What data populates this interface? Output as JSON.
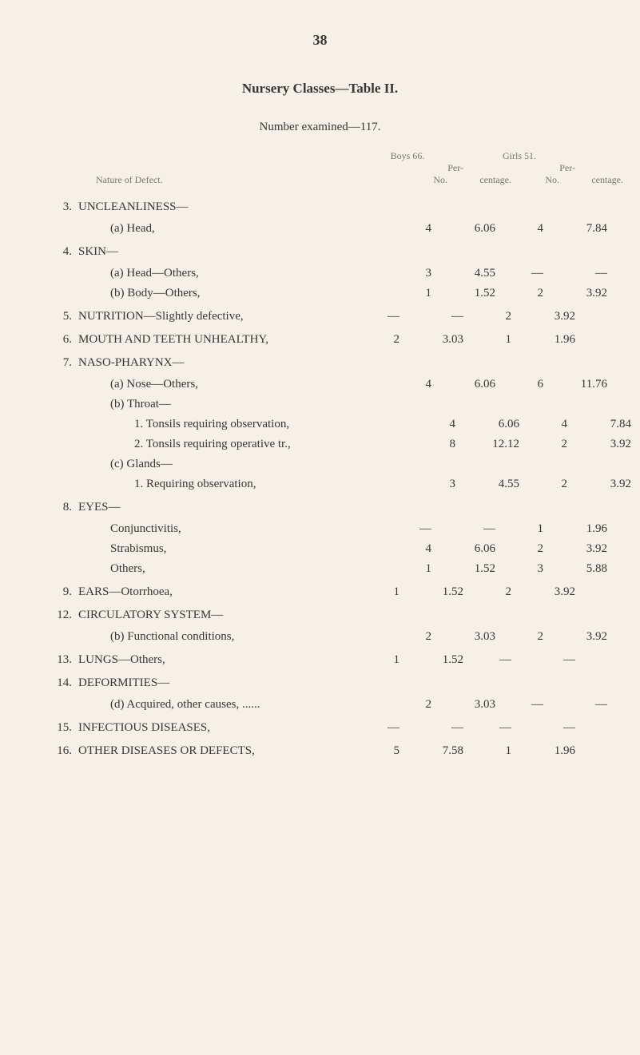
{
  "page_number": "38",
  "title": "Nursery Classes—Table II.",
  "subtitle": "Number examined—117.",
  "headers": {
    "boys": "Boys 66.",
    "girls": "Girls 51.",
    "per": "Per-",
    "nature": "Nature of Defect.",
    "no": "No.",
    "centage": "centage."
  },
  "rows": [
    {
      "num": "3.",
      "label": "UNCLEANLINESS—",
      "header": true
    },
    {
      "label": "(a) Head,",
      "indent": 1,
      "bno": "4",
      "bpct": "6.06",
      "gno": "4",
      "gpct": "7.84",
      "dots": true
    },
    {
      "num": "4.",
      "label": "SKIN—",
      "header": true
    },
    {
      "label": "(a) Head—Others,",
      "indent": 1,
      "bno": "3",
      "bpct": "4.55",
      "gno": "—",
      "gpct": "—",
      "dots": true
    },
    {
      "label": "(b) Body—Others,",
      "indent": 1,
      "bno": "1",
      "bpct": "1.52",
      "gno": "2",
      "gpct": "3.92",
      "dots": true
    },
    {
      "num": "5.",
      "label": "NUTRITION—Slightly defective,",
      "bno": "—",
      "bpct": "—",
      "gno": "2",
      "gpct": "3.92",
      "dots": true,
      "header": true
    },
    {
      "num": "6.",
      "label": "MOUTH AND TEETH UNHEALTHY,",
      "bno": "2",
      "bpct": "3.03",
      "gno": "1",
      "gpct": "1.96",
      "header": true
    },
    {
      "num": "7.",
      "label": "NASO-PHARYNX—",
      "header": true
    },
    {
      "label": "(a) Nose—Others,",
      "indent": 1,
      "bno": "4",
      "bpct": "6.06",
      "gno": "6",
      "gpct": "11.76",
      "dots": true
    },
    {
      "label": "(b) Throat—",
      "indent": 1
    },
    {
      "label": "1. Tonsils requiring observation,",
      "indent": 2,
      "bno": "4",
      "bpct": "6.06",
      "gno": "4",
      "gpct": "7.84"
    },
    {
      "label": "2. Tonsils requiring operative tr.,",
      "indent": 2,
      "bno": "8",
      "bpct": "12.12",
      "gno": "2",
      "gpct": "3.92"
    },
    {
      "label": "(c) Glands—",
      "indent": 1
    },
    {
      "label": "1. Requiring observation,",
      "indent": 2,
      "bno": "3",
      "bpct": "4.55",
      "gno": "2",
      "gpct": "3.92",
      "dots": true
    },
    {
      "num": "8.",
      "label": "EYES—",
      "header": true
    },
    {
      "label": "Conjunctivitis,",
      "indent": 1,
      "bno": "—",
      "bpct": "—",
      "gno": "1",
      "gpct": "1.96",
      "dots": true
    },
    {
      "label": "Strabismus,",
      "indent": 1,
      "bno": "4",
      "bpct": "6.06",
      "gno": "2",
      "gpct": "3.92",
      "dots": true
    },
    {
      "label": "Others,",
      "indent": 1,
      "bno": "1",
      "bpct": "1.52",
      "gno": "3",
      "gpct": "5.88",
      "dots": true
    },
    {
      "num": "9.",
      "label": "EARS—Otorrhoea,",
      "bno": "1",
      "bpct": "1.52",
      "gno": "2",
      "gpct": "3.92",
      "dots": true,
      "header": true
    },
    {
      "num": "12.",
      "label": "CIRCULATORY SYSTEM—",
      "header": true
    },
    {
      "label": "(b) Functional conditions,",
      "indent": 1,
      "bno": "2",
      "bpct": "3.03",
      "gno": "2",
      "gpct": "3.92",
      "dots": true
    },
    {
      "num": "13.",
      "label": "LUNGS—Others,",
      "bno": "1",
      "bpct": "1.52",
      "gno": "—",
      "gpct": "—",
      "dots": true,
      "header": true
    },
    {
      "num": "14.",
      "label": "DEFORMITIES—",
      "header": true
    },
    {
      "label": "(d) Acquired, other causes, ......",
      "indent": 1,
      "bno": "2",
      "bpct": "3.03",
      "gno": "—",
      "gpct": "—",
      "dots": true
    },
    {
      "num": "15.",
      "label": "INFECTIOUS DISEASES,",
      "bno": "—",
      "bpct": "—",
      "gno": "—",
      "gpct": "—",
      "dots": true,
      "header": true
    },
    {
      "num": "16.",
      "label": "OTHER DISEASES OR DEFECTS,",
      "bno": "5",
      "bpct": "7.58",
      "gno": "1",
      "gpct": "1.96",
      "dots": true,
      "header": true
    }
  ]
}
